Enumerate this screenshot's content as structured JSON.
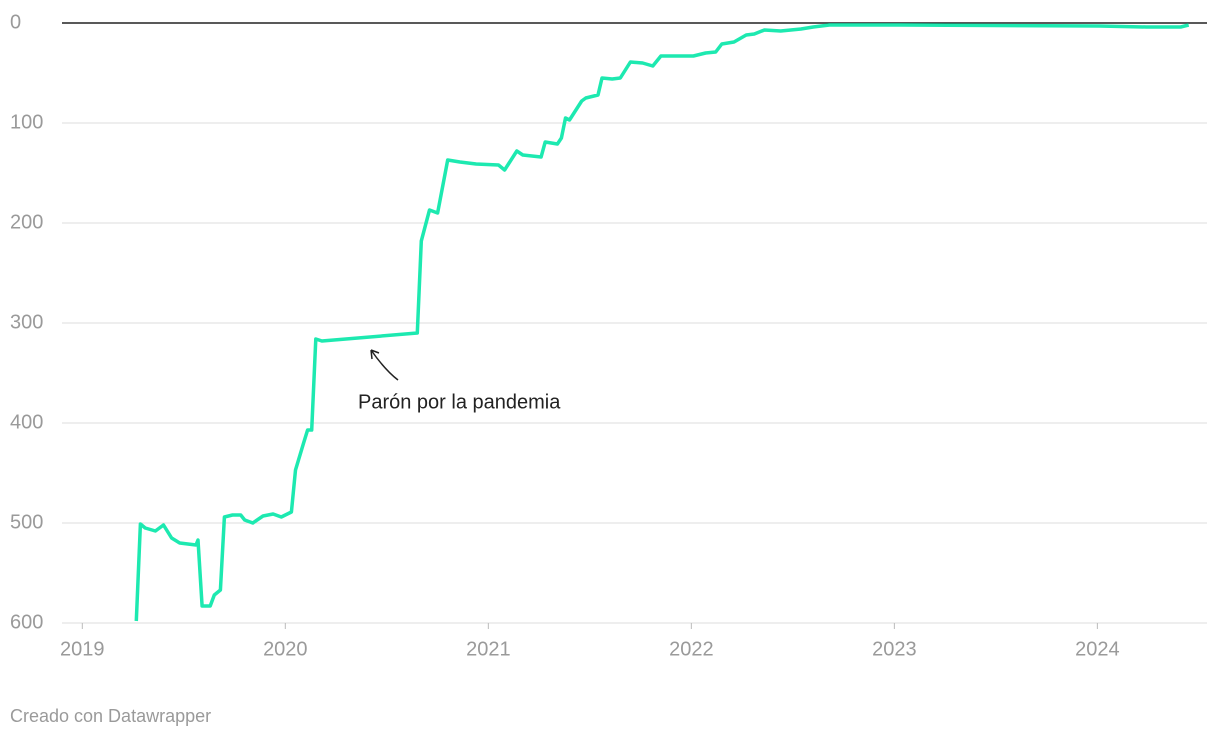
{
  "chart_data": {
    "type": "line",
    "annotation": "Parón por la pandemia",
    "credit": "Creado con Datawrapper",
    "color": "#1de9b0",
    "x": [
      2019.266,
      2019.286,
      2019.31,
      2019.36,
      2019.4,
      2019.44,
      2019.48,
      2019.56,
      2019.57,
      2019.59,
      2019.63,
      2019.65,
      2019.68,
      2019.7,
      2019.74,
      2019.78,
      2019.8,
      2019.84,
      2019.89,
      2019.94,
      2019.98,
      2020.03,
      2020.05,
      2020.09,
      2020.11,
      2020.13,
      2020.15,
      2020.18,
      2020.65,
      2020.67,
      2020.71,
      2020.75,
      2020.8,
      2020.86,
      2020.94,
      2021.05,
      2021.08,
      2021.14,
      2021.17,
      2021.26,
      2021.28,
      2021.34,
      2021.36,
      2021.38,
      2021.4,
      2021.46,
      2021.48,
      2021.54,
      2021.56,
      2021.61,
      2021.65,
      2021.7,
      2021.76,
      2021.81,
      2021.85,
      2022.01,
      2022.07,
      2022.12,
      2022.15,
      2022.21,
      2022.27,
      2022.31,
      2022.36,
      2022.44,
      2022.54,
      2022.6,
      2022.68,
      2023.03,
      2024.01,
      2024.24,
      2024.41,
      2024.45
    ],
    "values": [
      598,
      501,
      505,
      508,
      502,
      515,
      520,
      522,
      517,
      583,
      583,
      572,
      567,
      494,
      492,
      492,
      497,
      500,
      493,
      491,
      494,
      489,
      447,
      420,
      407,
      407,
      316,
      318,
      310,
      218,
      187,
      190,
      137,
      139,
      141,
      142,
      147,
      128,
      132,
      134,
      119,
      121,
      115,
      95,
      97,
      78,
      75,
      72,
      55,
      56,
      55,
      39,
      40,
      43,
      33,
      33,
      30,
      29,
      21,
      19,
      12,
      11,
      7,
      8,
      6,
      4,
      2,
      2,
      3,
      4,
      4,
      2
    ],
    "xlim": [
      2018.9,
      2024.54
    ],
    "xticks": [
      2019,
      2020,
      2021,
      2022,
      2023,
      2024
    ],
    "ylim": [
      600,
      0
    ],
    "yticks": [
      0,
      100,
      200,
      300,
      400,
      500,
      600
    ],
    "grid": true
  }
}
